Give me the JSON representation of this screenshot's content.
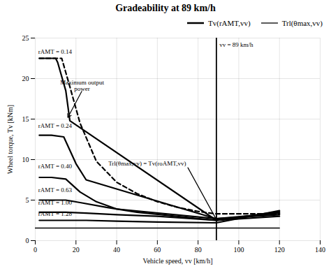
{
  "chart_data": {
    "type": "line",
    "title": "Gradeability at 89 km/h",
    "xlabel": "Vehicle speed, vv [km/h]",
    "ylabel": "Wheel torque, Tv [kNm]",
    "xlim": [
      0,
      140
    ],
    "ylim": [
      0,
      25
    ],
    "xticks": [
      0,
      20,
      40,
      60,
      80,
      100,
      120,
      140
    ],
    "yticks": [
      0,
      5,
      10,
      15,
      20,
      25
    ],
    "grid": true,
    "legend": "upper right",
    "color": "#000000",
    "series": [
      {
        "line_style": "dashed",
        "x": [
          2,
          10,
          13,
          17,
          22,
          30,
          40,
          50,
          60,
          70,
          80,
          89,
          100,
          120
        ],
        "values": [
          22.5,
          22.5,
          22.5,
          19.0,
          14.5,
          9.8,
          7.2,
          5.8,
          4.8,
          4.1,
          3.6,
          3.3,
          3.3,
          3.3
        ]
      },
      {
        "name": "Tv(rAMT,vv)",
        "line_style": "solid",
        "curves": [
          {
            "label": "rAMT = 0.14",
            "label_x": 1.5,
            "label_y": 23.3,
            "x": [
              2,
              10,
              11,
              15,
              17,
              89,
              120
            ],
            "values": [
              22.5,
              22.5,
              22.0,
              18.5,
              14.8,
              2.5,
              3.0
            ]
          },
          {
            "label": "rAMT = 0.24",
            "label_x": 1.5,
            "label_y": 14.2,
            "x": [
              2,
              8,
              14,
              20,
              25,
              89,
              120
            ],
            "values": [
              13.0,
              13.0,
              12.8,
              9.5,
              7.5,
              2.7,
              3.2
            ]
          },
          {
            "label": "rAMT = 0.40",
            "label_x": 1.5,
            "label_y": 9.2,
            "x": [
              2,
              8,
              15,
              22,
              30,
              40,
              89,
              120
            ],
            "values": [
              7.8,
              7.8,
              7.6,
              6.0,
              4.8,
              3.9,
              2.7,
              3.4
            ]
          },
          {
            "label": "rAMT = 0.63",
            "label_x": 1.5,
            "label_y": 6.2,
            "x": [
              2,
              8,
              15,
              22,
              35,
              50,
              89,
              120
            ],
            "values": [
              5.0,
              5.0,
              5.0,
              4.7,
              4.1,
              3.5,
              2.5,
              3.5
            ]
          },
          {
            "label": "rAMT = 1.00",
            "label_x": 1.5,
            "label_y": 4.7,
            "x": [
              2,
              8,
              15,
              25,
              40,
              60,
              89,
              120
            ],
            "values": [
              3.5,
              3.5,
              3.5,
              3.4,
              3.2,
              3.0,
              2.5,
              3.6
            ]
          },
          {
            "label": "rAMT = 1.28",
            "label_x": 1.5,
            "label_y": 3.3,
            "x": [
              2,
              8,
              15,
              25,
              40,
              60,
              89,
              120
            ],
            "values": [
              2.5,
              2.5,
              2.5,
              2.5,
              2.4,
              2.3,
              2.2,
              3.7
            ]
          }
        ]
      },
      {
        "name": "Trl(θmax,vv)",
        "line_style": "thin",
        "x": [
          0,
          89,
          120
        ],
        "values": [
          1.55,
          1.55,
          1.55
        ]
      }
    ],
    "vlines": [
      89
    ],
    "annotations": [
      {
        "text": "Maximum output\npower",
        "x": 23,
        "y": 18.5,
        "anchor": "bottom",
        "arrow_to": [
          16,
          15.2
        ]
      },
      {
        "text": "Trl(θmax,vv) = Tv(roAMT,vv)",
        "x": 55,
        "y": 9.5,
        "anchor": "center"
      },
      {
        "arrow_from": [
          75,
          9.0
        ],
        "arrow_to": [
          89,
          2.6
        ]
      },
      {
        "text": "vv = 89 km/h",
        "x": 90.5,
        "y": 24.5,
        "anchor": "top-left"
      }
    ]
  }
}
